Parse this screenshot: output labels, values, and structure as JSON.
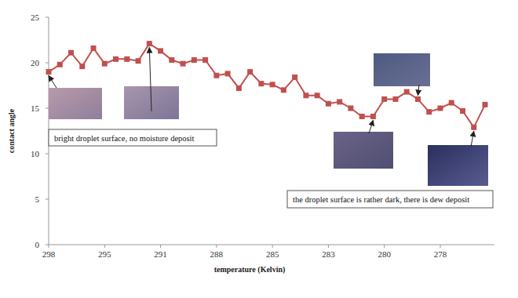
{
  "chart_data": {
    "type": "line",
    "x_label": "temperature (Kelvin)",
    "y_label": "contact angle",
    "categories": [
      "298",
      null,
      null,
      null,
      null,
      "295",
      null,
      null,
      null,
      null,
      "291",
      null,
      null,
      null,
      null,
      "288",
      null,
      null,
      null,
      null,
      "285",
      null,
      null,
      null,
      null,
      "283",
      null,
      null,
      null,
      null,
      "280",
      null,
      null,
      null,
      null,
      "278",
      null,
      null,
      null,
      null
    ],
    "values": [
      19.0,
      19.8,
      21.1,
      19.6,
      21.6,
      19.9,
      20.4,
      20.4,
      20.2,
      22.1,
      21.3,
      20.3,
      19.9,
      20.3,
      20.3,
      18.6,
      18.8,
      17.2,
      19.0,
      17.7,
      17.6,
      17.0,
      18.4,
      16.4,
      16.4,
      15.5,
      15.7,
      15.0,
      14.1,
      14.1,
      16.0,
      16.0,
      16.8,
      16.0,
      14.6,
      15.0,
      15.6,
      14.7,
      12.9,
      15.4
    ],
    "color": "#c0504d",
    "marker": "square",
    "line_style": "solid",
    "ylim": [
      0,
      25
    ],
    "yticks": [
      0,
      5,
      10,
      15,
      20,
      25
    ],
    "grid": false,
    "annotations": [
      "bright droplet surface, no moisture deposit",
      "the droplet surface is rather dark, there is dew deposit"
    ]
  }
}
